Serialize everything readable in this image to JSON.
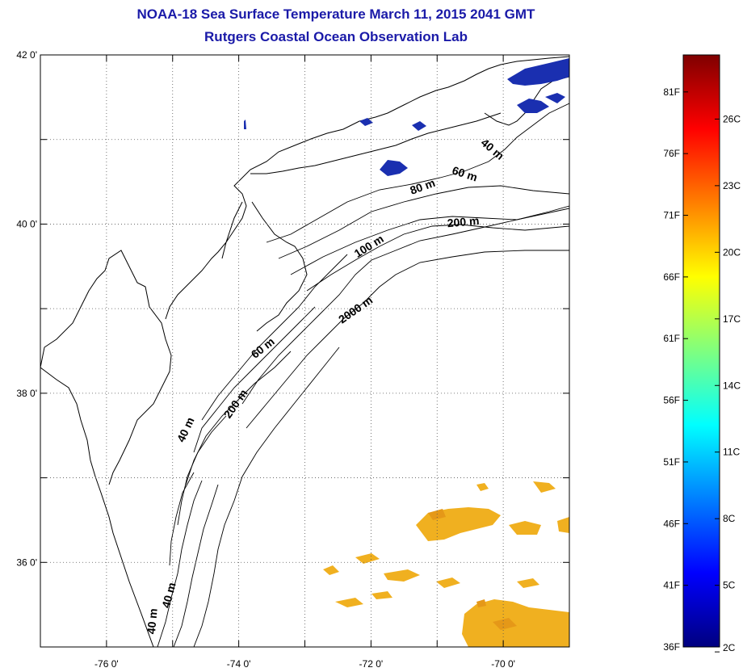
{
  "title_line1": "NOAA-18 Sea Surface Temperature March 11, 2015 2041 GMT",
  "title_line2": "Rutgers Coastal Ocean Observation Lab",
  "lat_labels": [
    {
      "value": 42,
      "text": "42 0'"
    },
    {
      "value": 40,
      "text": "40 0'"
    },
    {
      "value": 38,
      "text": "38 0'"
    },
    {
      "value": 36,
      "text": "36 0'"
    }
  ],
  "lon_labels": [
    {
      "value": -76,
      "text": "-76 0'"
    },
    {
      "value": -74,
      "text": "-74 0'"
    },
    {
      "value": -72,
      "text": "-72 0'"
    },
    {
      "value": -70,
      "text": "-70 0'"
    }
  ],
  "lon_range": [
    -77.0,
    -69.0
  ],
  "lat_range": [
    35.0,
    42.0
  ],
  "isobath_labels": [
    {
      "text": "40 m",
      "lon": -70.2,
      "lat": 40.85,
      "rot": 40
    },
    {
      "text": "60 m",
      "lon": -70.6,
      "lat": 40.55,
      "rot": 18
    },
    {
      "text": "80 m",
      "lon": -71.2,
      "lat": 40.4,
      "rot": -20
    },
    {
      "text": "200 m",
      "lon": -70.6,
      "lat": 39.98,
      "rot": -5
    },
    {
      "text": "100 m",
      "lon": -72.0,
      "lat": 39.7,
      "rot": -32
    },
    {
      "text": "2000 m",
      "lon": -72.2,
      "lat": 38.95,
      "rot": -35
    },
    {
      "text": "60 m",
      "lon": -73.6,
      "lat": 38.5,
      "rot": -38
    },
    {
      "text": "200 m",
      "lon": -74.0,
      "lat": 37.85,
      "rot": -55
    },
    {
      "text": "40 m",
      "lon": -74.75,
      "lat": 37.55,
      "rot": -65
    },
    {
      "text": "40 m",
      "lon": -75.0,
      "lat": 35.6,
      "rot": -75
    },
    {
      "text": "40 m",
      "lon": -75.25,
      "lat": 35.3,
      "rot": -85
    }
  ],
  "colorbar": {
    "min_f": 36,
    "max_f": 84,
    "fahrenheit_labels": [
      "36F",
      "41F",
      "46F",
      "51F",
      "56F",
      "61F",
      "66F",
      "71F",
      "76F",
      "81F"
    ],
    "celsius_labels": [
      "2C",
      "5C",
      "8C",
      "11C",
      "14C",
      "17C",
      "20C",
      "23C",
      "26C"
    ],
    "stops": [
      "#00007f",
      "#0000ff",
      "#007fff",
      "#00ffff",
      "#7fff7f",
      "#ffff00",
      "#ff7f00",
      "#ff0000",
      "#7f0000"
    ]
  },
  "colors": {
    "title": "#1a1aa8",
    "cold_sst": "#1a2fb0",
    "warm_sst": "#f0b020",
    "warm_sst_dark": "#e59818"
  }
}
